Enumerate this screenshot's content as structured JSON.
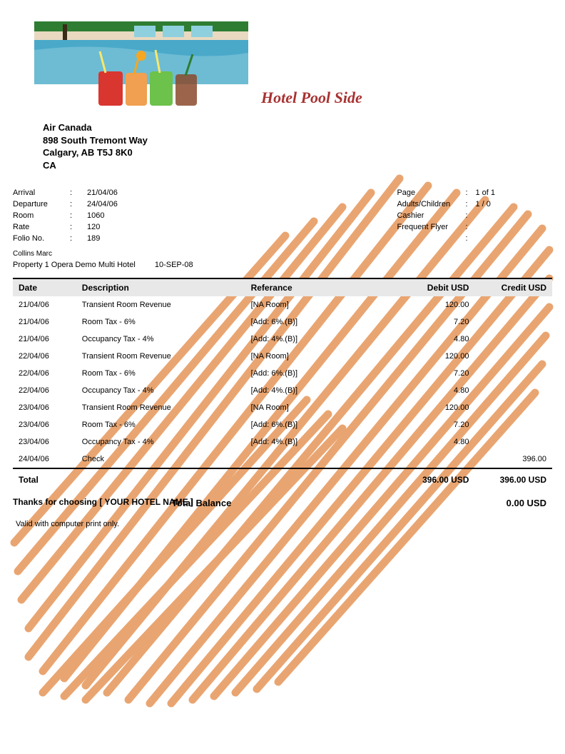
{
  "header": {
    "hotel_title": "Hotel Pool Side",
    "logo_colors": {
      "water": "#4aa9c9",
      "water_light": "#8fd0df",
      "green": "#2e7d32",
      "deck": "#e8d9c0",
      "drink_red": "#d8362f",
      "drink_orange": "#f0a050",
      "drink_green": "#6cc24a",
      "drink_brown": "#8b4a2b",
      "straw_yellow": "#f8e86a",
      "straw_orange": "#f5a623"
    }
  },
  "customer": {
    "name": "Air Canada",
    "address1": "898 South Tremont Way",
    "address2": "Calgary, AB T5J 8K0",
    "country": "CA"
  },
  "meta_left": {
    "arrival_label": "Arrival",
    "arrival_value": "21/04/06",
    "departure_label": "Departure",
    "departure_value": "24/04/06",
    "room_label": "Room",
    "room_value": "1060",
    "rate_label": "Rate",
    "rate_value": "120",
    "folio_label": "Folio No.",
    "folio_value": "189"
  },
  "meta_right": {
    "page_label": "Page",
    "page_value": "1 of 1",
    "adults_label": "Adults/Children",
    "adults_value": "1 / 0",
    "cashier_label": "Cashier",
    "cashier_value": "",
    "ff_label": "Frequent Flyer",
    "ff_value": ""
  },
  "guest_name": "Collins Marc",
  "property_line": {
    "property": "Property 1 Opera Demo Multi Hotel",
    "date": "10-SEP-08"
  },
  "table": {
    "headers": {
      "date": "Date",
      "description": "Description",
      "reference": "Referance",
      "debit": "Debit USD",
      "credit": "Credit USD"
    },
    "rows": [
      {
        "date": "21/04/06",
        "description": "Transient Room Revenue",
        "reference": "[NA Room]",
        "debit": "120.00",
        "credit": ""
      },
      {
        "date": "21/04/06",
        "description": "Room Tax - 6%",
        "reference": "[Add: 6%.(B)]",
        "debit": "7.20",
        "credit": ""
      },
      {
        "date": "21/04/06",
        "description": "Occupancy Tax - 4%",
        "reference": "[Add: 4%.(B)]",
        "debit": "4.80",
        "credit": ""
      },
      {
        "date": "22/04/06",
        "description": "Transient Room Revenue",
        "reference": "[NA Room]",
        "debit": "120.00",
        "credit": ""
      },
      {
        "date": "22/04/06",
        "description": "Room Tax - 6%",
        "reference": "[Add: 6%.(B)]",
        "debit": "7.20",
        "credit": ""
      },
      {
        "date": "22/04/06",
        "description": "Occupancy Tax - 4%",
        "reference": "[Add: 4%.(B)]",
        "debit": "4.80",
        "credit": ""
      },
      {
        "date": "23/04/06",
        "description": "Transient Room Revenue",
        "reference": "[NA Room]",
        "debit": "120.00",
        "credit": ""
      },
      {
        "date": "23/04/06",
        "description": "Room Tax - 6%",
        "reference": "[Add: 6%.(B)]",
        "debit": "7.20",
        "credit": ""
      },
      {
        "date": "23/04/06",
        "description": "Occupancy Tax - 4%",
        "reference": "[Add: 4%.(B)]",
        "debit": "4.80",
        "credit": ""
      },
      {
        "date": "24/04/06",
        "description": "Check",
        "reference": "",
        "debit": "",
        "credit": "396.00"
      }
    ]
  },
  "totals": {
    "total_label": "Total",
    "total_debit": "396.00 USD",
    "total_credit": "396.00 USD",
    "balance_label": "Total Balance",
    "balance_value": "0.00 USD"
  },
  "valid_note": "Valid with computer print only.",
  "thanks": "Thanks for choosing  [ YOUR HOTEL NAME ]",
  "watermark_color": "#e79c62"
}
